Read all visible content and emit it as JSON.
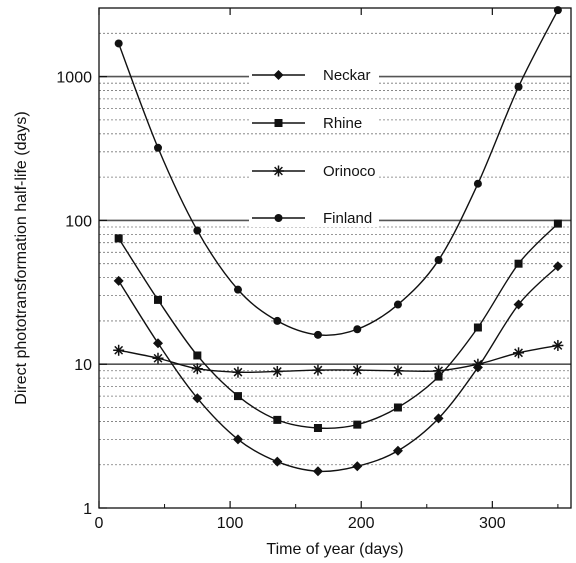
{
  "chart_data": {
    "type": "line",
    "xlabel": "Time of year (days)",
    "ylabel": "Direct phototransformation half-life (days)",
    "xlim": [
      0,
      360
    ],
    "ylim": [
      1,
      3000
    ],
    "yscale": "log",
    "x_ticks": [
      0,
      100,
      200,
      300
    ],
    "x_tick_labels": [
      "0",
      "100",
      "200",
      "300"
    ],
    "y_ticks": [
      1,
      10,
      100,
      1000
    ],
    "y_tick_labels": [
      "1",
      "10",
      "100",
      "1000"
    ],
    "grid": "horizontal-dashed-minor, solid-major",
    "legend_position": "top-center",
    "x": [
      15,
      45,
      75,
      106,
      136,
      167,
      197,
      228,
      259,
      289,
      320,
      350
    ],
    "series": [
      {
        "name": "Neckar",
        "marker": "diamond",
        "values": [
          38,
          14,
          5.8,
          3.0,
          2.1,
          1.8,
          1.95,
          2.5,
          4.2,
          9.5,
          26,
          48
        ]
      },
      {
        "name": "Rhine",
        "marker": "square",
        "values": [
          75,
          28,
          11.5,
          6.0,
          4.1,
          3.6,
          3.8,
          5.0,
          8.2,
          18,
          50,
          95
        ]
      },
      {
        "name": "Orinoco",
        "marker": "star",
        "values": [
          12.5,
          11,
          9.3,
          8.8,
          8.9,
          9.1,
          9.1,
          9.0,
          9.0,
          10,
          12,
          13.5
        ]
      },
      {
        "name": "Finland",
        "marker": "circle",
        "values": [
          1700,
          320,
          85,
          33,
          20,
          16,
          17.5,
          26,
          53,
          180,
          850,
          2900
        ]
      }
    ]
  }
}
